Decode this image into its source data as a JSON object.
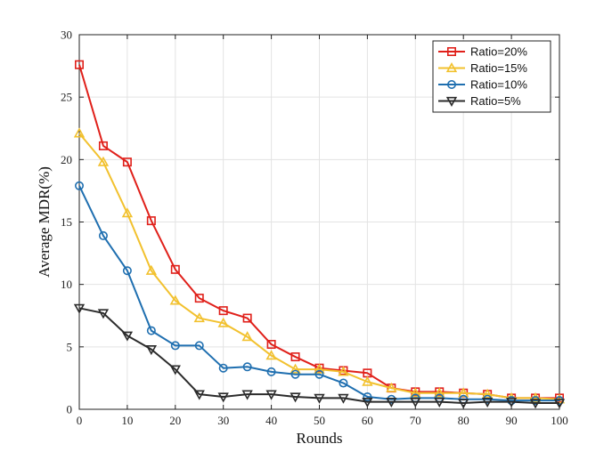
{
  "chart_data": {
    "type": "line",
    "title": "",
    "xlabel": "Rounds",
    "ylabel": "Average MDR(%)",
    "xlim": [
      0,
      100
    ],
    "ylim": [
      0,
      30
    ],
    "xticks": [
      0,
      10,
      20,
      30,
      40,
      50,
      60,
      70,
      80,
      90,
      100
    ],
    "yticks": [
      0,
      5,
      10,
      15,
      20,
      25,
      30
    ],
    "grid": true,
    "legend_position": "top-right",
    "x": [
      0,
      5,
      10,
      15,
      20,
      25,
      30,
      35,
      40,
      45,
      50,
      55,
      60,
      65,
      70,
      75,
      80,
      85,
      90,
      95,
      100
    ],
    "series": [
      {
        "name": "Ratio=20%",
        "color": "#e0201a",
        "marker": "square",
        "values": [
          27.6,
          21.1,
          19.8,
          15.1,
          11.2,
          8.9,
          7.9,
          7.3,
          5.2,
          4.2,
          3.3,
          3.1,
          2.9,
          1.7,
          1.4,
          1.4,
          1.3,
          1.2,
          0.9,
          0.9,
          0.9
        ]
      },
      {
        "name": "Ratio=15%",
        "color": "#f2c12e",
        "marker": "triangle-up",
        "values": [
          22.1,
          19.8,
          15.7,
          11.1,
          8.7,
          7.3,
          6.9,
          5.8,
          4.3,
          3.2,
          3.2,
          3.0,
          2.2,
          1.7,
          1.3,
          1.3,
          1.3,
          1.2,
          0.9,
          0.9,
          0.8
        ]
      },
      {
        "name": "Ratio=10%",
        "color": "#1f6fb0",
        "marker": "circle",
        "values": [
          17.9,
          13.9,
          11.1,
          6.3,
          5.1,
          5.1,
          3.3,
          3.4,
          3.0,
          2.8,
          2.8,
          2.1,
          1.0,
          0.8,
          0.9,
          0.9,
          0.8,
          0.8,
          0.7,
          0.7,
          0.7
        ]
      },
      {
        "name": "Ratio=5%",
        "color": "#2b2b2b",
        "marker": "triangle-down",
        "values": [
          8.1,
          7.7,
          5.9,
          4.8,
          3.2,
          1.2,
          1.0,
          1.2,
          1.2,
          1.0,
          0.9,
          0.9,
          0.6,
          0.6,
          0.6,
          0.6,
          0.5,
          0.6,
          0.6,
          0.5,
          0.5
        ]
      }
    ]
  }
}
